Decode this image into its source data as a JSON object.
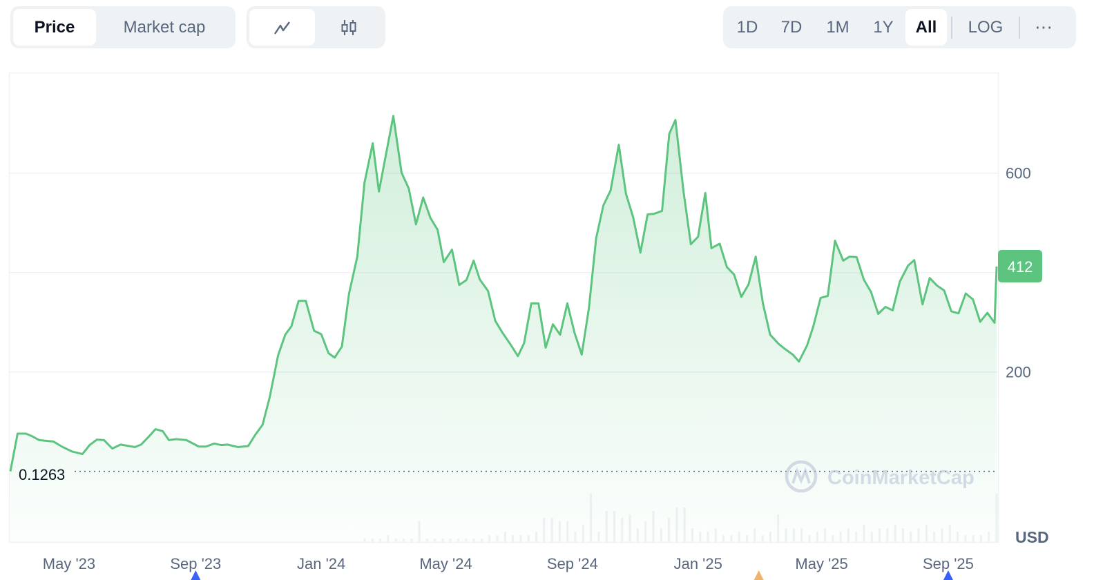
{
  "toolbar": {
    "data_tabs": [
      {
        "label": "Price",
        "active": true
      },
      {
        "label": "Market cap",
        "active": false
      }
    ],
    "chart_types": [
      {
        "icon": "line-chart-icon",
        "active": true
      },
      {
        "icon": "candlestick-icon",
        "active": false
      }
    ],
    "ranges": [
      {
        "label": "1D"
      },
      {
        "label": "7D"
      },
      {
        "label": "1M"
      },
      {
        "label": "1Y"
      },
      {
        "label": "All",
        "active": true
      }
    ],
    "log_label": "LOG",
    "more_label": "⋯"
  },
  "chart_data": {
    "type": "area",
    "title": "",
    "xlabel": "",
    "ylabel": "",
    "currency": "USD",
    "watermark": "CoinMarketCap",
    "line_color": "#5cc47f",
    "current_price_label": "412",
    "baseline_label": "0.1263",
    "xlim": [
      "2023-03-05",
      "2025-10-18"
    ],
    "ylim": [
      -142,
      801
    ],
    "y_grid": [
      200,
      400,
      600
    ],
    "y_tick_labels": [
      {
        "value": 200,
        "label": "200"
      },
      {
        "value": 600,
        "label": "600"
      }
    ],
    "x_tick_labels": [
      {
        "date": "2023-05-01",
        "label": "May '23"
      },
      {
        "date": "2023-09-01",
        "label": "Sep '23"
      },
      {
        "date": "2024-01-01",
        "label": "Jan '24"
      },
      {
        "date": "2024-05-01",
        "label": "May '24"
      },
      {
        "date": "2024-09-01",
        "label": "Sep '24"
      },
      {
        "date": "2025-01-01",
        "label": "Jan '25"
      },
      {
        "date": "2025-05-01",
        "label": "May '25"
      },
      {
        "date": "2025-09-01",
        "label": "Sep '25"
      }
    ],
    "event_markers": [
      {
        "date": "2023-09-01",
        "color": "#3861fb"
      },
      {
        "date": "2025-03-01",
        "color": "#f0b36b"
      },
      {
        "date": "2025-09-01",
        "color": "#3861fb"
      }
    ],
    "series": [
      {
        "points": [
          [
            "2023-03-05",
            0.1263
          ],
          [
            "2023-03-12",
            76
          ],
          [
            "2023-03-20",
            76
          ],
          [
            "2023-03-26",
            71
          ],
          [
            "2023-04-02",
            63
          ],
          [
            "2023-04-16",
            60
          ],
          [
            "2023-04-24",
            50
          ],
          [
            "2023-05-04",
            40
          ],
          [
            "2023-05-14",
            35
          ],
          [
            "2023-05-21",
            53
          ],
          [
            "2023-05-28",
            64
          ],
          [
            "2023-06-04",
            63
          ],
          [
            "2023-06-12",
            46
          ],
          [
            "2023-06-20",
            54
          ],
          [
            "2023-07-04",
            49
          ],
          [
            "2023-07-10",
            54
          ],
          [
            "2023-07-17",
            69
          ],
          [
            "2023-07-24",
            85
          ],
          [
            "2023-07-31",
            81
          ],
          [
            "2023-08-06",
            63
          ],
          [
            "2023-08-13",
            65
          ],
          [
            "2023-08-23",
            63
          ],
          [
            "2023-09-04",
            50
          ],
          [
            "2023-09-11",
            50
          ],
          [
            "2023-09-19",
            56
          ],
          [
            "2023-09-26",
            53
          ],
          [
            "2023-10-02",
            54
          ],
          [
            "2023-10-12",
            49
          ],
          [
            "2023-10-22",
            51
          ],
          [
            "2023-10-29",
            74
          ],
          [
            "2023-11-05",
            94
          ],
          [
            "2023-11-12",
            150
          ],
          [
            "2023-11-20",
            233
          ],
          [
            "2023-11-27",
            275
          ],
          [
            "2023-12-03",
            292
          ],
          [
            "2023-12-10",
            343
          ],
          [
            "2023-12-17",
            343
          ],
          [
            "2023-12-25",
            283
          ],
          [
            "2024-01-01",
            276
          ],
          [
            "2024-01-08",
            238
          ],
          [
            "2024-01-14",
            229
          ],
          [
            "2024-01-21",
            251
          ],
          [
            "2024-01-28",
            358
          ],
          [
            "2024-02-05",
            432
          ],
          [
            "2024-02-12",
            581
          ],
          [
            "2024-02-20",
            660
          ],
          [
            "2024-02-26",
            563
          ],
          [
            "2024-03-05",
            650
          ],
          [
            "2024-03-11",
            715
          ],
          [
            "2024-03-19",
            601
          ],
          [
            "2024-03-26",
            569
          ],
          [
            "2024-04-02",
            497
          ],
          [
            "2024-04-09",
            551
          ],
          [
            "2024-04-16",
            510
          ],
          [
            "2024-04-23",
            486
          ],
          [
            "2024-04-29",
            421
          ],
          [
            "2024-05-07",
            446
          ],
          [
            "2024-05-14",
            375
          ],
          [
            "2024-05-21",
            385
          ],
          [
            "2024-05-28",
            424
          ],
          [
            "2024-06-03",
            386
          ],
          [
            "2024-06-11",
            363
          ],
          [
            "2024-06-18",
            303
          ],
          [
            "2024-06-25",
            279
          ],
          [
            "2024-07-02",
            258
          ],
          [
            "2024-07-10",
            232
          ],
          [
            "2024-07-16",
            258
          ],
          [
            "2024-07-23",
            338
          ],
          [
            "2024-07-30",
            338
          ],
          [
            "2024-08-06",
            249
          ],
          [
            "2024-08-13",
            296
          ],
          [
            "2024-08-20",
            275
          ],
          [
            "2024-08-27",
            338
          ],
          [
            "2024-09-03",
            279
          ],
          [
            "2024-09-10",
            235
          ],
          [
            "2024-09-17",
            329
          ],
          [
            "2024-09-24",
            469
          ],
          [
            "2024-10-01",
            535
          ],
          [
            "2024-10-08",
            565
          ],
          [
            "2024-10-16",
            657
          ],
          [
            "2024-10-23",
            558
          ],
          [
            "2024-10-30",
            511
          ],
          [
            "2024-11-06",
            440
          ],
          [
            "2024-11-13",
            517
          ],
          [
            "2024-11-19",
            518
          ],
          [
            "2024-11-27",
            524
          ],
          [
            "2024-12-04",
            679
          ],
          [
            "2024-12-10",
            707
          ],
          [
            "2024-12-18",
            561
          ],
          [
            "2024-12-25",
            457
          ],
          [
            "2025-01-01",
            472
          ],
          [
            "2025-01-08",
            560
          ],
          [
            "2025-01-14",
            449
          ],
          [
            "2025-01-22",
            458
          ],
          [
            "2025-01-29",
            411
          ],
          [
            "2025-02-05",
            396
          ],
          [
            "2025-02-12",
            351
          ],
          [
            "2025-02-19",
            376
          ],
          [
            "2025-02-26",
            432
          ],
          [
            "2025-03-05",
            338
          ],
          [
            "2025-03-12",
            275
          ],
          [
            "2025-03-20",
            257
          ],
          [
            "2025-03-26",
            247
          ],
          [
            "2025-04-03",
            235
          ],
          [
            "2025-04-09",
            221
          ],
          [
            "2025-04-17",
            254
          ],
          [
            "2025-04-23",
            292
          ],
          [
            "2025-04-30",
            349
          ],
          [
            "2025-05-07",
            353
          ],
          [
            "2025-05-14",
            464
          ],
          [
            "2025-05-22",
            424
          ],
          [
            "2025-05-28",
            432
          ],
          [
            "2025-06-04",
            431
          ],
          [
            "2025-06-11",
            386
          ],
          [
            "2025-06-18",
            361
          ],
          [
            "2025-06-25",
            317
          ],
          [
            "2025-07-02",
            331
          ],
          [
            "2025-07-09",
            324
          ],
          [
            "2025-07-16",
            382
          ],
          [
            "2025-07-24",
            414
          ],
          [
            "2025-07-30",
            425
          ],
          [
            "2025-08-07",
            336
          ],
          [
            "2025-08-14",
            389
          ],
          [
            "2025-08-21",
            374
          ],
          [
            "2025-08-28",
            364
          ],
          [
            "2025-09-04",
            322
          ],
          [
            "2025-09-11",
            318
          ],
          [
            "2025-09-18",
            358
          ],
          [
            "2025-09-25",
            346
          ],
          [
            "2025-10-02",
            301
          ],
          [
            "2025-10-09",
            319
          ],
          [
            "2025-10-16",
            299
          ],
          [
            "2025-10-18",
            412
          ]
        ]
      }
    ],
    "volume_relative": [
      1,
      1,
      1,
      2,
      1,
      1,
      1,
      6,
      1,
      1,
      1,
      1,
      1,
      1,
      1,
      1,
      2,
      2,
      3,
      2,
      2,
      2,
      3,
      7,
      7,
      6,
      6,
      3,
      5,
      14,
      3,
      9,
      9,
      7,
      8,
      4,
      6,
      9,
      4,
      7,
      10,
      10,
      4,
      3,
      3,
      4,
      2,
      2,
      3,
      2,
      4,
      2,
      3,
      8,
      4,
      4,
      4,
      2,
      3,
      4,
      2,
      3,
      4,
      3,
      5,
      3,
      4,
      4,
      5,
      4,
      3,
      4,
      5,
      3,
      4,
      5,
      3,
      2,
      2,
      2,
      3,
      14
    ]
  }
}
